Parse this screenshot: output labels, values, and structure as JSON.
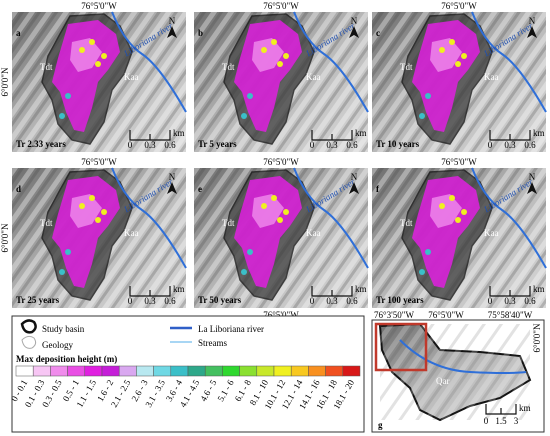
{
  "panels": [
    {
      "letter": "a",
      "period": "Tr 2.33 years"
    },
    {
      "letter": "b",
      "period": "Tr 5 years"
    },
    {
      "letter": "c",
      "period": "Tr 10 years"
    },
    {
      "letter": "d",
      "period": "Tr 25 years"
    },
    {
      "letter": "e",
      "period": "Tr 50 years"
    },
    {
      "letter": "f",
      "period": "Tr 100 years"
    }
  ],
  "map_labels": {
    "lon": "76°5'0\"W",
    "lat": "6°0'0\"N",
    "river": "Liboriana river",
    "unit_1": "Tdt",
    "unit_2": "Kaa",
    "north": "N",
    "scale": [
      "0",
      "0.3",
      "0.6"
    ],
    "km": "km"
  },
  "legend": {
    "study_basin": "Study basin",
    "geology": "Geology",
    "river": "La Liboriana river",
    "streams": "Streams",
    "title": "Max deposition height (m)",
    "classes": [
      {
        "label": "0 - 0.1",
        "color": "#ffffff"
      },
      {
        "label": "0.1 - 0.3",
        "color": "#f7c6f4"
      },
      {
        "label": "0.3 - 0.5",
        "color": "#f08cec"
      },
      {
        "label": "0.5 - 1",
        "color": "#e94fe4"
      },
      {
        "label": "1.1 - 1.5",
        "color": "#e020e0"
      },
      {
        "label": "1.6 - 2",
        "color": "#c51ed8"
      },
      {
        "label": "2.1 - 2.5",
        "color": "#d9a8f0"
      },
      {
        "label": "2.6 - 3",
        "color": "#b8e8f0"
      },
      {
        "label": "3.1 - 3.5",
        "color": "#6fd8e4"
      },
      {
        "label": "3.6 - 4",
        "color": "#3bbfc8"
      },
      {
        "label": "4.1 - 4.5",
        "color": "#2ea88a"
      },
      {
        "label": "4.6 - 5",
        "color": "#44c060"
      },
      {
        "label": "5.1 - 6",
        "color": "#2fd82f"
      },
      {
        "label": "6.1 - 8",
        "color": "#8ae030"
      },
      {
        "label": "8.1 - 10",
        "color": "#c8e82a"
      },
      {
        "label": "10.1 - 12",
        "color": "#f0f020"
      },
      {
        "label": "12.1 - 14",
        "color": "#f8c820"
      },
      {
        "label": "14.1 - 16",
        "color": "#f89020"
      },
      {
        "label": "16.1 - 18",
        "color": "#f05020"
      },
      {
        "label": "18.1 - 20",
        "color": "#d81818"
      }
    ]
  },
  "inset": {
    "letter": "g",
    "lon_1": "76°3'50\"W",
    "lon_2": "76°5'0\"W",
    "lon_3": "75°58'40\"W",
    "lat": "6°0'0\"N",
    "unit": "Qar",
    "scale": [
      "0",
      "1.5",
      "3"
    ],
    "km": "km"
  }
}
